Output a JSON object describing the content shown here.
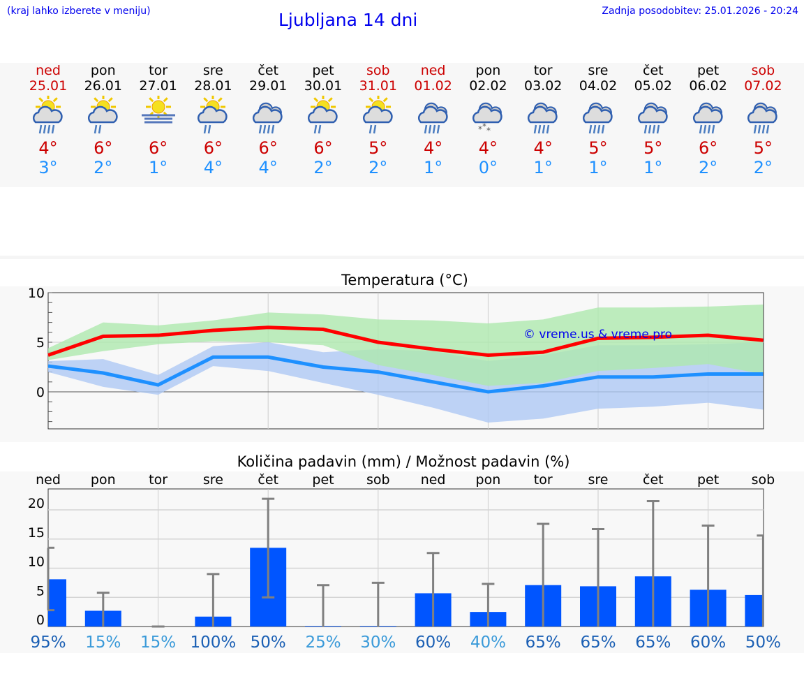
{
  "header": {
    "note": "(kraj lahko izberete v meniju)",
    "title": "Ljubljana 14 dni",
    "updated": "Zadnja posodobitev: 25.01.2026 - 20:24"
  },
  "days": [
    {
      "day": "ned",
      "date": "25.01",
      "weekend": true,
      "icon": "sun-cloud-heavy-rain-icon",
      "max": "4°",
      "min": "3°"
    },
    {
      "day": "pon",
      "date": "26.01",
      "weekend": false,
      "icon": "sun-cloud-light-rain-icon",
      "max": "6°",
      "min": "2°"
    },
    {
      "day": "tor",
      "date": "27.01",
      "weekend": false,
      "icon": "sun-fog-icon",
      "max": "6°",
      "min": "1°"
    },
    {
      "day": "sre",
      "date": "28.01",
      "weekend": false,
      "icon": "sun-cloud-light-rain-icon",
      "max": "6°",
      "min": "4°"
    },
    {
      "day": "čet",
      "date": "29.01",
      "weekend": false,
      "icon": "cloud-rain-icon",
      "max": "6°",
      "min": "4°"
    },
    {
      "day": "pet",
      "date": "30.01",
      "weekend": false,
      "icon": "sun-cloud-light-rain-icon",
      "max": "6°",
      "min": "2°"
    },
    {
      "day": "sob",
      "date": "31.01",
      "weekend": true,
      "icon": "sun-cloud-light-rain-icon",
      "max": "5°",
      "min": "2°"
    },
    {
      "day": "ned",
      "date": "01.02",
      "weekend": true,
      "icon": "cloud-rain-icon",
      "max": "4°",
      "min": "1°"
    },
    {
      "day": "pon",
      "date": "02.02",
      "weekend": false,
      "icon": "cloud-snow-icon",
      "max": "4°",
      "min": "0°"
    },
    {
      "day": "tor",
      "date": "03.02",
      "weekend": false,
      "icon": "cloud-rain-icon",
      "max": "4°",
      "min": "1°"
    },
    {
      "day": "sre",
      "date": "04.02",
      "weekend": false,
      "icon": "cloud-rain-icon",
      "max": "5°",
      "min": "1°"
    },
    {
      "day": "čet",
      "date": "05.02",
      "weekend": false,
      "icon": "cloud-rain-icon",
      "max": "5°",
      "min": "1°"
    },
    {
      "day": "pet",
      "date": "06.02",
      "weekend": false,
      "icon": "cloud-rain-icon",
      "max": "6°",
      "min": "2°"
    },
    {
      "day": "sob",
      "date": "07.02",
      "weekend": true,
      "icon": "cloud-rain-icon",
      "max": "5°",
      "min": "2°"
    }
  ],
  "colors": {
    "max_line": "#ff0000",
    "min_line": "#1e90ff",
    "max_band": "#aee8ae",
    "min_band": "#aec8f4",
    "bar": "#0055ff",
    "whisker": "#808080",
    "weekend": "#cc0000"
  },
  "chart_data": [
    {
      "type": "line",
      "title": "Temperatura (°C)",
      "ylim": [
        -3.6,
        10
      ],
      "yticks": [
        "10",
        "5",
        "0"
      ],
      "watermark": "© vreme.us & vreme.pro",
      "grid": true,
      "series": [
        {
          "key": "max",
          "values": [
            3.7,
            5.6,
            5.7,
            6.2,
            6.5,
            6.3,
            5.0,
            4.3,
            3.7,
            4.0,
            5.4,
            5.5,
            5.7,
            5.2
          ],
          "band_high": [
            4.4,
            7.0,
            6.7,
            7.2,
            8.0,
            7.8,
            7.3,
            7.2,
            6.9,
            7.3,
            8.5,
            8.5,
            8.6,
            8.8
          ],
          "band_low": [
            3.2,
            4.1,
            4.8,
            5.1,
            5.0,
            4.7,
            2.7,
            1.7,
            0.6,
            0.9,
            2.1,
            2.4,
            2.8,
            1.8
          ]
        },
        {
          "key": "min",
          "values": [
            2.6,
            1.9,
            0.7,
            3.5,
            3.5,
            2.5,
            2.0,
            1.0,
            0.0,
            0.6,
            1.5,
            1.5,
            1.8,
            1.8
          ],
          "band_high": [
            3.1,
            3.3,
            1.7,
            4.6,
            5.0,
            4.0,
            4.3,
            4.1,
            3.1,
            3.7,
            4.7,
            4.7,
            4.8,
            5.0
          ],
          "band_low": [
            2.0,
            0.5,
            -0.3,
            2.6,
            2.1,
            0.9,
            -0.3,
            -1.6,
            -3.1,
            -2.7,
            -1.7,
            -1.5,
            -1.1,
            -1.8
          ]
        }
      ]
    },
    {
      "type": "bar",
      "title": "Količina padavin (mm) / Možnost padavin (%)",
      "ylim": [
        0,
        23
      ],
      "yticks": [
        "20",
        "15",
        "10",
        "5",
        "0"
      ],
      "grid": true,
      "categories": [
        "ned",
        "pon",
        "tor",
        "sre",
        "čet",
        "pet",
        "sob",
        "ned",
        "pon",
        "tor",
        "sre",
        "čet",
        "pet",
        "sob"
      ],
      "values": [
        8.1,
        2.7,
        0,
        1.7,
        13.5,
        0.1,
        0.1,
        5.7,
        2.5,
        7.1,
        6.9,
        8.6,
        6.3,
        5.4
      ],
      "err_high": [
        13.5,
        5.8,
        0,
        9.0,
        21.9,
        7.1,
        7.5,
        12.6,
        7.3,
        17.6,
        16.7,
        21.5,
        17.3,
        15.6
      ],
      "err_low": [
        2.8,
        0,
        0,
        0,
        5.0,
        0,
        0,
        0,
        0,
        0,
        0,
        0,
        0,
        0
      ],
      "probability": [
        "95%",
        "15%",
        "15%",
        "100%",
        "50%",
        "25%",
        "30%",
        "60%",
        "40%",
        "65%",
        "65%",
        "65%",
        "60%",
        "50%"
      ]
    }
  ]
}
